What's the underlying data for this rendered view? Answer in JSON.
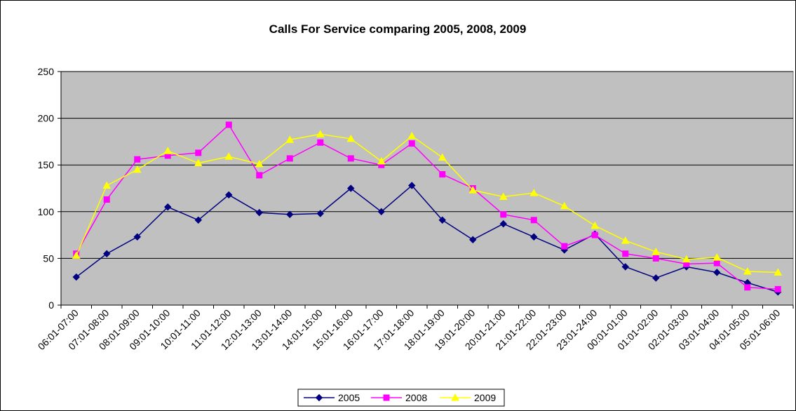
{
  "chart_data": {
    "type": "line",
    "title": "Calls For Service comparing 2005, 2008, 2009",
    "xlabel": "",
    "ylabel": "",
    "ylim": [
      0,
      250
    ],
    "yticks": [
      "0",
      "50",
      "100",
      "150",
      "200",
      "250"
    ],
    "grid": true,
    "legend_position": "bottom",
    "plot_background": "#C0C0C0",
    "categories": [
      "06:01-07:00",
      "07:01-08:00",
      "08:01-09:00",
      "09:01-10:00",
      "10:01-11:00",
      "11:01-12:00",
      "12:01-13:00",
      "13:01-14:00",
      "14:01-15:00",
      "15:01-16:00",
      "16:01-17:00",
      "17:01-18:00",
      "18:01-19:00",
      "19:01-20:00",
      "20:01-21:00",
      "21:01-22:00",
      "22:01-23:00",
      "23:01-24:00",
      "00:01-01:00",
      "01:01-02:00",
      "02:01-03:00",
      "03:01-04:00",
      "04:01-05:00",
      "05:01-06:00"
    ],
    "series": [
      {
        "name": "2005",
        "color": "#000080",
        "marker": "diamond",
        "values": [
          30,
          55,
          73,
          105,
          91,
          118,
          99,
          97,
          98,
          125,
          100,
          128,
          91,
          70,
          87,
          73,
          59,
          76,
          41,
          29,
          41,
          35,
          24,
          14
        ]
      },
      {
        "name": "2008",
        "color": "#FF00FF",
        "marker": "square",
        "values": [
          55,
          113,
          156,
          160,
          163,
          193,
          139,
          157,
          174,
          157,
          150,
          173,
          140,
          125,
          97,
          91,
          63,
          75,
          55,
          50,
          44,
          45,
          19,
          17
        ]
      },
      {
        "name": "2009",
        "color": "#FFFF00",
        "marker": "triangle",
        "values": [
          53,
          128,
          145,
          165,
          152,
          159,
          151,
          177,
          183,
          178,
          154,
          181,
          158,
          123,
          116,
          120,
          106,
          85,
          69,
          57,
          49,
          51,
          36,
          35
        ]
      }
    ]
  }
}
